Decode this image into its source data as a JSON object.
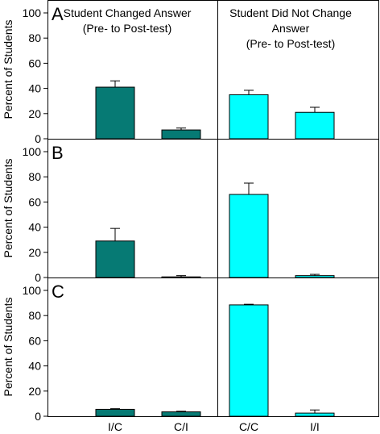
{
  "chart_data": {
    "type": "bar",
    "categories": [
      "I/C",
      "C/I",
      "C/C",
      "I/I"
    ],
    "group_headers": [
      [
        "Student Changed Answer",
        "(Pre- to Post-test)"
      ],
      [
        "Student Did Not Change",
        "Answer",
        "(Pre- to Post-test)"
      ]
    ],
    "ylabel": "Percent of Students",
    "ylim": [
      0,
      100
    ],
    "yticks": [
      0,
      20,
      40,
      60,
      80,
      100
    ],
    "bar_colors": [
      "#067a74",
      "#067a74",
      "#00ffff",
      "#00ffff"
    ],
    "panels": [
      {
        "label": "A",
        "values": [
          41,
          7,
          35,
          21
        ],
        "errors": [
          5,
          1.5,
          3.5,
          4
        ]
      },
      {
        "label": "B",
        "values": [
          29,
          0.5,
          66,
          1.5
        ],
        "errors": [
          10,
          1,
          9,
          1
        ]
      },
      {
        "label": "C",
        "values": [
          5.5,
          3.5,
          88.5,
          2.5
        ],
        "errors": [
          0.5,
          0.5,
          0.5,
          2.5
        ]
      }
    ]
  }
}
